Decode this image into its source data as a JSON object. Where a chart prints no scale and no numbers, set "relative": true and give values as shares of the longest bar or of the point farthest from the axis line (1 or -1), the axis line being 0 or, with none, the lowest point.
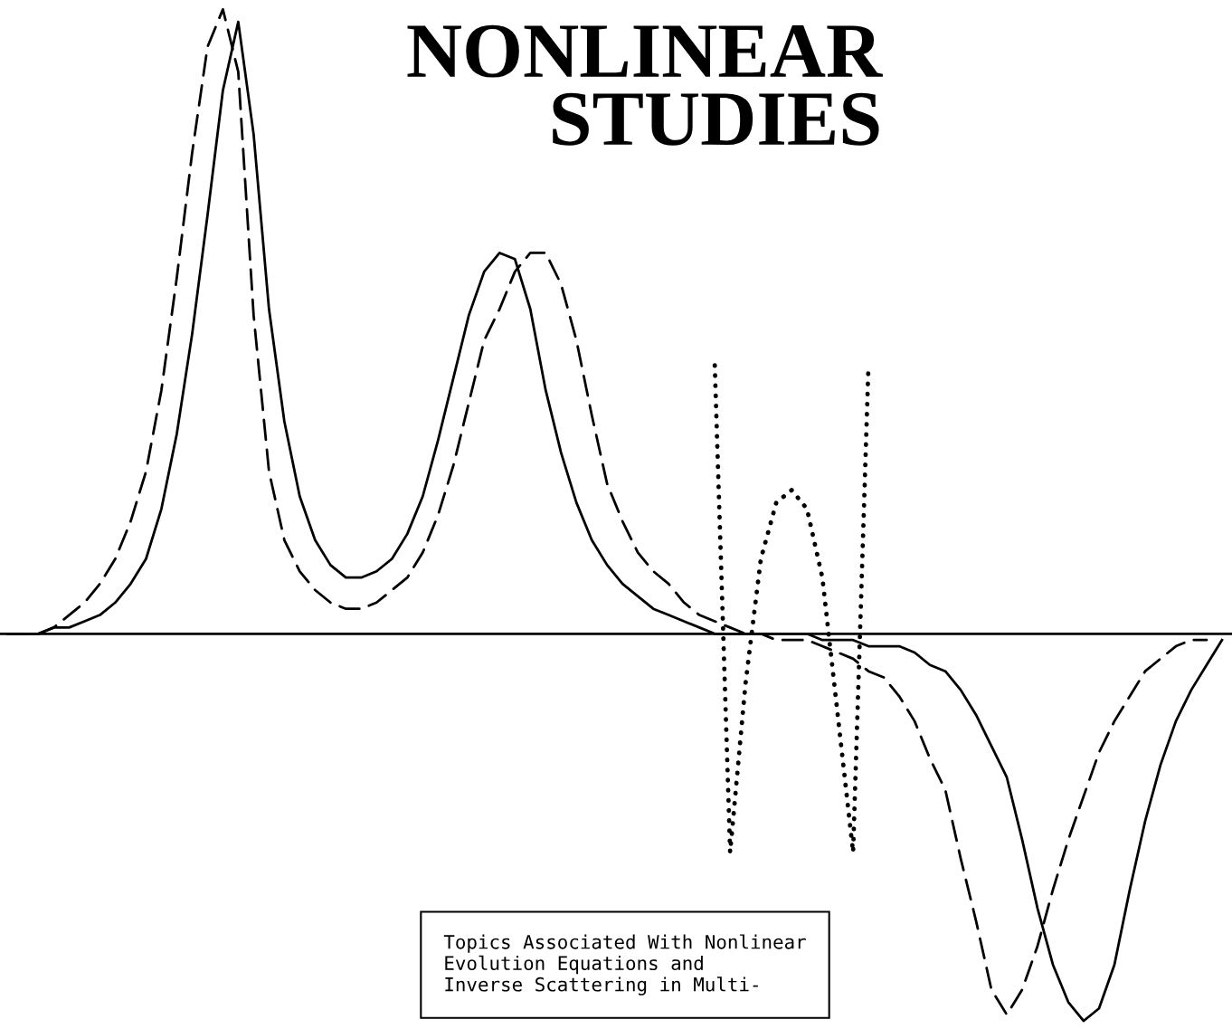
{
  "chart_data": {
    "type": "line",
    "title": "NONLINEAR\nSTUDIES",
    "relative": true,
    "grid": false,
    "categories": [
      null,
      null,
      null,
      null,
      null,
      null,
      null,
      null,
      null,
      null,
      null,
      null,
      null,
      null,
      null,
      null,
      null,
      null,
      null,
      null,
      null,
      null,
      null,
      null,
      null,
      null,
      null,
      null,
      null,
      null,
      null,
      null,
      null,
      null,
      null,
      null,
      null,
      null,
      null,
      null,
      null,
      null,
      null,
      null,
      null,
      null,
      null,
      null,
      null,
      null,
      null,
      null,
      null,
      null,
      null,
      null,
      null,
      null,
      null,
      null,
      null,
      null,
      null,
      null,
      null,
      null,
      null,
      null,
      null,
      null,
      null,
      null,
      null,
      null,
      null,
      null,
      null,
      null,
      null,
      null
    ],
    "series": [
      {
        "color": "#000000",
        "line_style": "solid",
        "values": [
          0,
          0,
          0,
          0.01,
          0.01,
          0.02,
          0.03,
          0.05,
          0.08,
          0.12,
          0.2,
          0.32,
          0.48,
          0.67,
          0.87,
          0.98,
          0.8,
          0.52,
          0.34,
          0.22,
          0.15,
          0.11,
          0.09,
          0.09,
          0.1,
          0.12,
          0.16,
          0.22,
          0.31,
          0.41,
          0.51,
          0.58,
          0.61,
          0.6,
          0.52,
          0.39,
          0.29,
          0.21,
          0.15,
          0.11,
          0.08,
          0.06,
          0.04,
          0.03,
          0.02,
          0.01,
          0,
          0,
          0,
          0,
          0,
          0,
          0,
          -0.01,
          -0.01,
          -0.01,
          -0.02,
          -0.02,
          -0.02,
          -0.03,
          -0.05,
          -0.06,
          -0.09,
          -0.13,
          -0.18,
          -0.23,
          -0.33,
          -0.44,
          -0.53,
          -0.59,
          -0.62,
          -0.6,
          -0.53,
          -0.41,
          -0.3,
          -0.21,
          -0.14,
          -0.09,
          -0.05,
          -0.01
        ]
      },
      {
        "color": "#000000",
        "line_style": "dashed",
        "values": [
          0,
          0,
          0,
          0.01,
          0.03,
          0.05,
          0.08,
          0.12,
          0.18,
          0.26,
          0.39,
          0.57,
          0.77,
          0.94,
          1,
          0.9,
          0.51,
          0.26,
          0.15,
          0.1,
          0.07,
          0.05,
          0.04,
          0.04,
          0.05,
          0.07,
          0.09,
          0.13,
          0.19,
          0.27,
          0.37,
          0.47,
          0.52,
          0.58,
          0.61,
          0.61,
          0.56,
          0.47,
          0.35,
          0.24,
          0.18,
          0.13,
          0.1,
          0.08,
          0.05,
          0.03,
          0.02,
          0.01,
          0,
          0,
          -0.01,
          -0.01,
          -0.01,
          -0.02,
          -0.03,
          -0.04,
          -0.06,
          -0.07,
          -0.1,
          -0.14,
          -0.2,
          -0.25,
          -0.36,
          -0.46,
          -0.57,
          -0.61,
          -0.57,
          -0.5,
          -0.41,
          -0.33,
          -0.26,
          -0.19,
          -0.14,
          -0.1,
          -0.06,
          -0.04,
          -0.02,
          -0.01,
          -0.01,
          null
        ]
      },
      {
        "color": "#000000",
        "line_style": "dotted",
        "values": [
          null,
          null,
          null,
          null,
          null,
          null,
          null,
          null,
          null,
          null,
          null,
          null,
          null,
          null,
          null,
          null,
          null,
          null,
          null,
          null,
          null,
          null,
          null,
          null,
          null,
          null,
          null,
          null,
          null,
          null,
          null,
          null,
          null,
          null,
          null,
          null,
          null,
          null,
          null,
          null,
          null,
          null,
          null,
          null,
          null,
          null,
          0.43,
          -0.35,
          -0.08,
          0.12,
          0.21,
          0.23,
          0.2,
          0.09,
          -0.13,
          -0.35,
          0.43,
          null,
          null,
          null,
          null,
          null,
          null,
          null,
          null,
          null,
          null,
          null,
          null,
          null,
          null,
          null,
          null,
          null,
          null,
          null,
          null,
          null,
          null,
          null
        ]
      }
    ],
    "annotations": [
      "Topics Associated With Nonlinear\nEvolution Equations and\nInverse Scattering in Multi-"
    ]
  }
}
